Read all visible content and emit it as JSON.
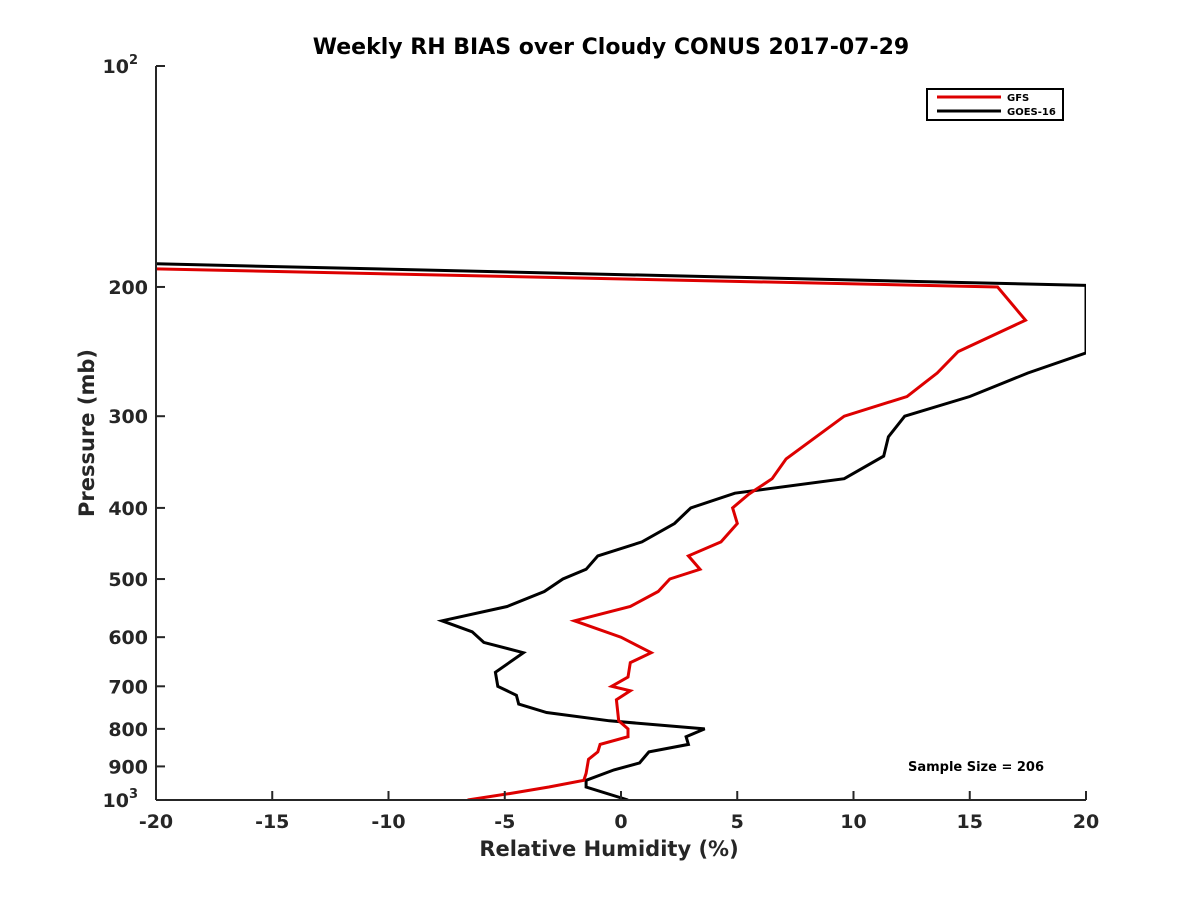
{
  "chart_data": {
    "type": "line",
    "title": "Weekly RH BIAS over Cloudy CONUS 2017-07-29",
    "xlabel": "Relative Humidity (%)",
    "ylabel": "Pressure (mb)",
    "xlim": [
      -20,
      20
    ],
    "ylim": [
      1000,
      100
    ],
    "yscale": "log",
    "y_reversed": true,
    "grid": false,
    "legend_position": "top-right",
    "x_ticks": [
      "-20",
      "-15",
      "-10",
      "-5",
      "0",
      "5",
      "10",
      "15",
      "20"
    ],
    "y_ticks": [
      {
        "value": 100,
        "label": "10",
        "sup": "2"
      },
      {
        "value": 200,
        "label": "200"
      },
      {
        "value": 300,
        "label": "300"
      },
      {
        "value": 400,
        "label": "400"
      },
      {
        "value": 500,
        "label": "500"
      },
      {
        "value": 600,
        "label": "600"
      },
      {
        "value": 700,
        "label": "700"
      },
      {
        "value": 800,
        "label": "800"
      },
      {
        "value": 900,
        "label": "900"
      },
      {
        "value": 1000,
        "label": "10",
        "sup": "3"
      }
    ],
    "series": [
      {
        "name": "GFS",
        "color": "#dd0000",
        "points": [
          [
            -20,
            189
          ],
          [
            16.2,
            200
          ],
          [
            17.4,
            222
          ],
          [
            14.5,
            245
          ],
          [
            13.6,
            262
          ],
          [
            12.3,
            282
          ],
          [
            9.6,
            300
          ],
          [
            7.1,
            343
          ],
          [
            6.5,
            365
          ],
          [
            5.5,
            383
          ],
          [
            4.8,
            400
          ],
          [
            5.0,
            420
          ],
          [
            4.3,
            445
          ],
          [
            2.9,
            465
          ],
          [
            3.4,
            485
          ],
          [
            2.1,
            500
          ],
          [
            1.6,
            520
          ],
          [
            0.4,
            545
          ],
          [
            -2.0,
            570
          ],
          [
            0.0,
            600
          ],
          [
            1.3,
            630
          ],
          [
            0.4,
            650
          ],
          [
            0.3,
            680
          ],
          [
            -0.4,
            700
          ],
          [
            0.4,
            710
          ],
          [
            -0.2,
            730
          ],
          [
            -0.1,
            780
          ],
          [
            0.3,
            800
          ],
          [
            0.3,
            820
          ],
          [
            -0.9,
            840
          ],
          [
            -1.0,
            860
          ],
          [
            -1.4,
            880
          ],
          [
            -1.5,
            920
          ],
          [
            -1.6,
            940
          ],
          [
            -3.1,
            960
          ],
          [
            -4.8,
            980
          ],
          [
            -6.6,
            1000
          ]
        ]
      },
      {
        "name": "GOES-16",
        "color": "#000000",
        "points": [
          [
            -20,
            186
          ],
          [
            20,
            199
          ],
          [
            20,
            246
          ],
          [
            17.5,
            262
          ],
          [
            15.0,
            282
          ],
          [
            12.2,
            300
          ],
          [
            11.5,
            320
          ],
          [
            11.3,
            340
          ],
          [
            9.6,
            365
          ],
          [
            4.9,
            382
          ],
          [
            3.0,
            400
          ],
          [
            2.3,
            420
          ],
          [
            0.9,
            445
          ],
          [
            -1.0,
            465
          ],
          [
            -1.5,
            485
          ],
          [
            -2.5,
            500
          ],
          [
            -3.3,
            520
          ],
          [
            -4.9,
            545
          ],
          [
            -7.7,
            570
          ],
          [
            -6.4,
            590
          ],
          [
            -5.9,
            610
          ],
          [
            -4.2,
            630
          ],
          [
            -5.4,
            670
          ],
          [
            -5.3,
            700
          ],
          [
            -4.5,
            720
          ],
          [
            -4.4,
            740
          ],
          [
            -3.2,
            760
          ],
          [
            -0.5,
            780
          ],
          [
            3.6,
            800
          ],
          [
            2.8,
            820
          ],
          [
            2.9,
            840
          ],
          [
            1.2,
            860
          ],
          [
            0.8,
            890
          ],
          [
            -0.3,
            910
          ],
          [
            -1.5,
            940
          ],
          [
            -1.5,
            960
          ],
          [
            0.3,
            1000
          ]
        ]
      }
    ],
    "annotations": [
      {
        "text": "Sample Size = 206"
      }
    ]
  }
}
